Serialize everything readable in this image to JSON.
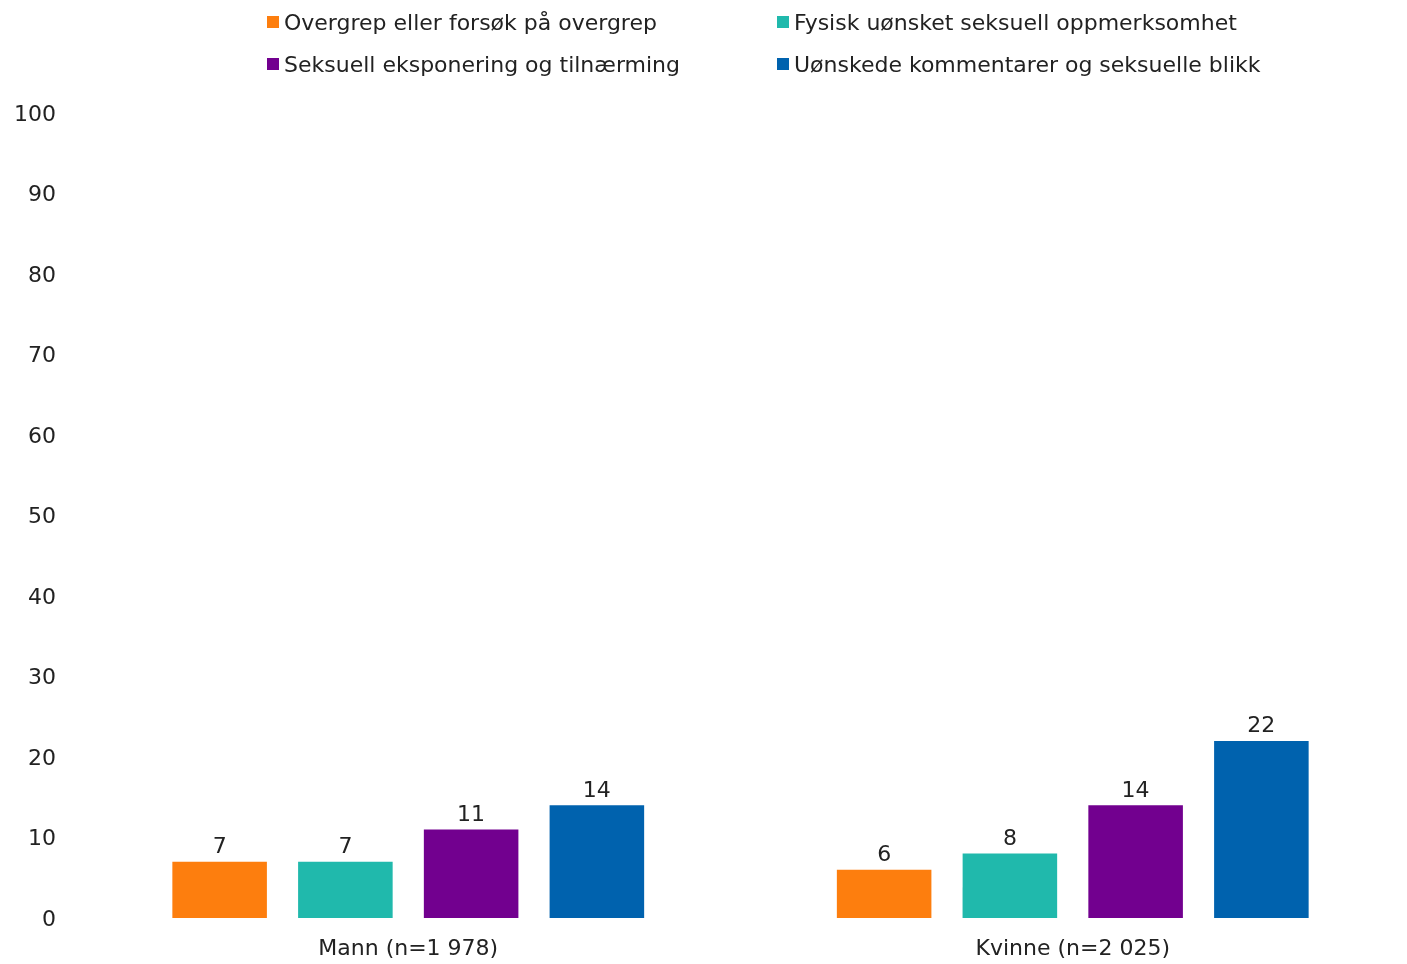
{
  "chart_data": {
    "type": "bar",
    "categories": [
      "Mann (n=1 978)",
      "Kvinne (n=2 025)"
    ],
    "series": [
      {
        "name": "Overgrep eller forsøk på overgrep",
        "color": "#fd7e0e",
        "values": [
          7,
          6
        ]
      },
      {
        "name": "Fysisk uønsket seksuell oppmerksomhet",
        "color": "#20b9ac",
        "values": [
          7,
          8
        ]
      },
      {
        "name": "Seksuell eksponering og tilnærming",
        "color": "#72008f",
        "values": [
          11,
          14
        ]
      },
      {
        "name": "Uønskede kommentarer og seksuelle blikk",
        "color": "#0062ae",
        "values": [
          14,
          22
        ]
      }
    ],
    "ylim": [
      0,
      100
    ],
    "yticks": [
      0,
      10,
      20,
      30,
      40,
      50,
      60,
      70,
      80,
      90,
      100
    ],
    "grid": false,
    "legend": "top",
    "data_labels": true
  }
}
